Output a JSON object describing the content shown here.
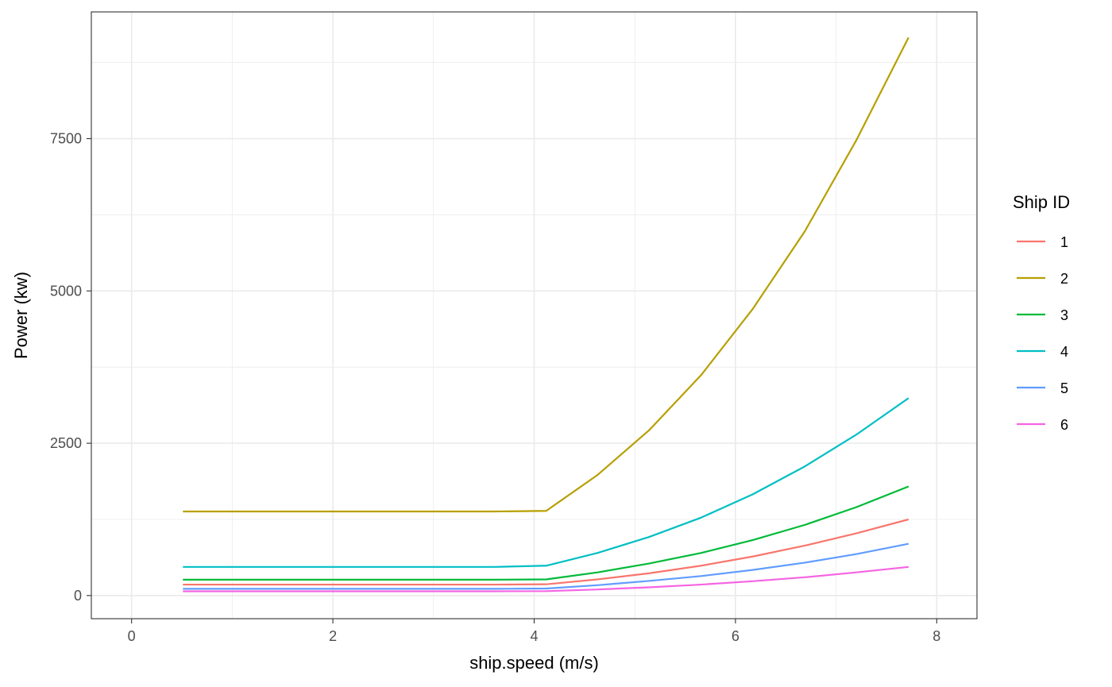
{
  "chart_data": {
    "type": "line",
    "title": "",
    "xlabel": "ship.speed (m/s)",
    "ylabel": "Power (kw)",
    "xlim": [
      -0.4,
      8.4
    ],
    "ylim": [
      -380,
      9580
    ],
    "x_ticks": [
      0,
      2,
      4,
      6,
      8
    ],
    "y_ticks": [
      0,
      2500,
      5000,
      7500
    ],
    "x_tick_labels": [
      "0",
      "2",
      "4",
      "6",
      "8"
    ],
    "y_tick_labels": [
      "0",
      "2500",
      "5000",
      "7500"
    ],
    "grid": true,
    "legend": {
      "title": "Ship ID",
      "position": "right"
    },
    "x": [
      0.51,
      1.03,
      1.54,
      2.06,
      2.57,
      3.09,
      3.6,
      4.12,
      4.63,
      5.14,
      5.66,
      6.17,
      6.69,
      7.2,
      7.72
    ],
    "series": [
      {
        "name": "1",
        "color": "#F8766D",
        "values": [
          180,
          180,
          180,
          180,
          180,
          180,
          180,
          185,
          265,
          365,
          490,
          640,
          820,
          1020,
          1250
        ]
      },
      {
        "name": "2",
        "color": "#B79F00",
        "values": [
          1380,
          1380,
          1380,
          1380,
          1380,
          1380,
          1380,
          1390,
          1980,
          2710,
          3620,
          4700,
          5980,
          7470,
          9160
        ]
      },
      {
        "name": "3",
        "color": "#00BA38",
        "values": [
          260,
          260,
          260,
          260,
          260,
          260,
          260,
          265,
          380,
          525,
          700,
          910,
          1160,
          1450,
          1790
        ]
      },
      {
        "name": "4",
        "color": "#00BFC4",
        "values": [
          470,
          470,
          470,
          470,
          470,
          470,
          470,
          490,
          700,
          960,
          1280,
          1660,
          2120,
          2640,
          3240
        ]
      },
      {
        "name": "5",
        "color": "#619CFF",
        "values": [
          110,
          110,
          110,
          110,
          110,
          110,
          110,
          115,
          170,
          240,
          320,
          420,
          540,
          680,
          850
        ]
      },
      {
        "name": "6",
        "color": "#F564E3",
        "values": [
          70,
          70,
          70,
          70,
          70,
          70,
          70,
          72,
          100,
          135,
          180,
          235,
          300,
          380,
          470
        ]
      }
    ]
  }
}
